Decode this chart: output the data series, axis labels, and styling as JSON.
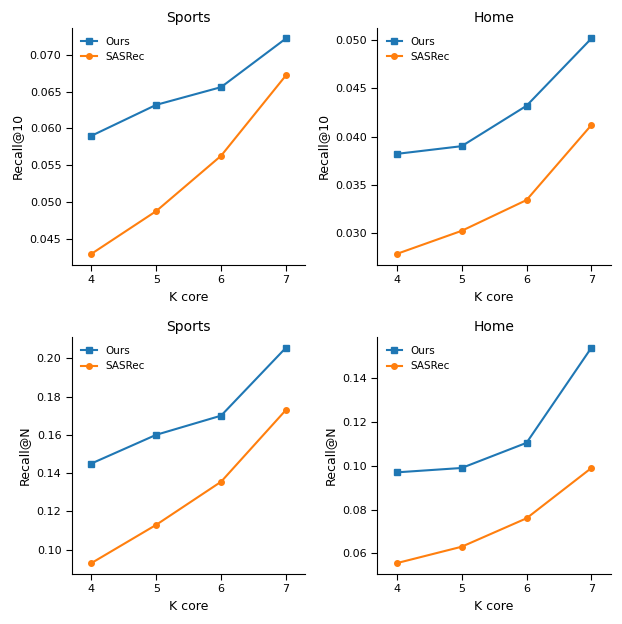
{
  "x": [
    4,
    5,
    6,
    7
  ],
  "plots": [
    {
      "title": "Sports",
      "ylabel": "Recall@10",
      "ours": [
        0.059,
        0.0632,
        0.0656,
        0.0722
      ],
      "sasrec": [
        0.043,
        0.0488,
        0.0563,
        0.0672
      ],
      "ylim": [
        0.04,
        0.075
      ]
    },
    {
      "title": "Home",
      "ylabel": "Recall@10",
      "ours": [
        0.0382,
        0.039,
        0.0432,
        0.0502
      ],
      "sasrec": [
        0.0278,
        0.0302,
        0.0334,
        0.0412
      ],
      "ylim": [
        0.027,
        0.053
      ]
    },
    {
      "title": "Sports",
      "ylabel": "Recall@N",
      "ours": [
        0.145,
        0.16,
        0.17,
        0.2055
      ],
      "sasrec": [
        0.093,
        0.113,
        0.1355,
        0.173
      ],
      "ylim": [
        0.085,
        0.215
      ]
    },
    {
      "title": "Home",
      "ylabel": "Recall@N",
      "ours": [
        0.097,
        0.099,
        0.1105,
        0.154
      ],
      "sasrec": [
        0.0555,
        0.063,
        0.076,
        0.099
      ],
      "ylim": [
        0.053,
        0.16
      ]
    }
  ],
  "xlabel": "K core",
  "color_ours": "#1f77b4",
  "color_sasrec": "#ff7f0e",
  "marker_ours": "s",
  "marker_sasrec": "o",
  "label_ours": "Ours",
  "label_sasrec": "SASRec"
}
